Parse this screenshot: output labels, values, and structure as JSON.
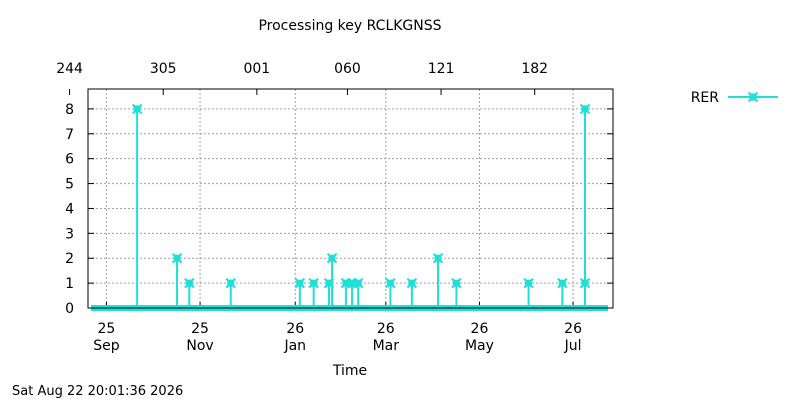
{
  "chart_data": {
    "type": "line",
    "title": "Processing key RCLKGNSS",
    "xlabel": "Time",
    "ylabel": "",
    "timestamp": "Sat Aug 22 20:01:36 2026",
    "x_range": [
      "2025-09-13",
      "2026-08-21"
    ],
    "ylim": [
      0,
      8.8
    ],
    "y_ticks": [
      0,
      1,
      2,
      3,
      4,
      5,
      6,
      7,
      8
    ],
    "grid": true,
    "legend_position": "top-right",
    "bottom_ticks": [
      {
        "date": "2025-09-25",
        "line1": "25",
        "line2": "Sep"
      },
      {
        "date": "2025-11-25",
        "line1": "25",
        "line2": "Nov"
      },
      {
        "date": "2026-01-26",
        "line1": "26",
        "line2": "Jan"
      },
      {
        "date": "2026-03-26",
        "line1": "26",
        "line2": "Mar"
      },
      {
        "date": "2026-05-26",
        "line1": "26",
        "line2": "May"
      },
      {
        "date": "2026-07-26",
        "line1": "26",
        "line2": "Jul"
      }
    ],
    "top_ticks": [
      {
        "date": "2025-09-01",
        "label": "244"
      },
      {
        "date": "2025-11-01",
        "label": "305"
      },
      {
        "date": "2026-01-01",
        "label": "001"
      },
      {
        "date": "2026-03-01",
        "label": "060"
      },
      {
        "date": "2026-05-01",
        "label": "121"
      },
      {
        "date": "2026-07-01",
        "label": "182"
      }
    ],
    "series": [
      {
        "name": "RER",
        "color": "#1ee0d8",
        "baseline": 0,
        "points": [
          {
            "x": "2025-10-15",
            "y": 8
          },
          {
            "x": "2025-11-10",
            "y": 2
          },
          {
            "x": "2025-11-18",
            "y": 1
          },
          {
            "x": "2025-12-15",
            "y": 1
          },
          {
            "x": "2026-01-29",
            "y": 1
          },
          {
            "x": "2026-02-07",
            "y": 1
          },
          {
            "x": "2026-02-17",
            "y": 1
          },
          {
            "x": "2026-02-19",
            "y": 2
          },
          {
            "x": "2026-02-28",
            "y": 1
          },
          {
            "x": "2026-03-04",
            "y": 1
          },
          {
            "x": "2026-03-08",
            "y": 1
          },
          {
            "x": "2026-03-29",
            "y": 1
          },
          {
            "x": "2026-04-12",
            "y": 1
          },
          {
            "x": "2026-04-29",
            "y": 2
          },
          {
            "x": "2026-05-11",
            "y": 1
          },
          {
            "x": "2026-06-27",
            "y": 1
          },
          {
            "x": "2026-07-19",
            "y": 1
          },
          {
            "x": "2026-08-03",
            "y": 1
          },
          {
            "x": "2026-09-05",
            "y": 8
          }
        ]
      }
    ]
  }
}
